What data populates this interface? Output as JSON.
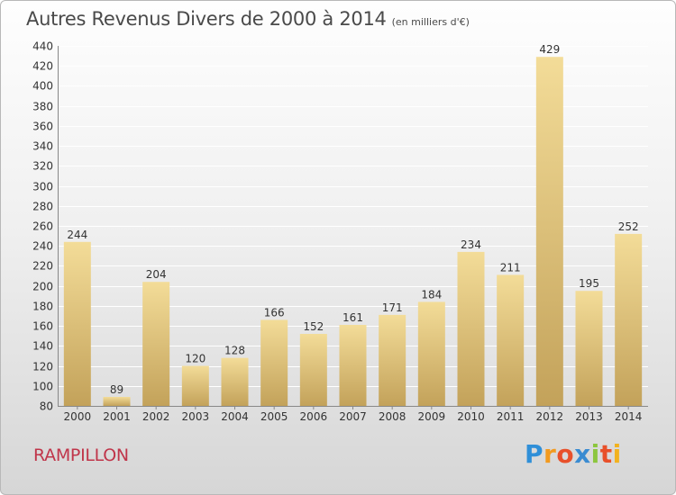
{
  "header": {
    "title": "Autres Revenus Divers de 2000 à 2014",
    "subtitle": "(en milliers d'€)"
  },
  "footer": {
    "commune": "RAMPILLON",
    "logo_text": "Proxiti"
  },
  "colors": {
    "bar_light": "#f3dc98",
    "bar_dark": "#c3a25a",
    "grid": "#ffffff",
    "axis_text": "#333333",
    "commune": "#c0354a"
  },
  "chart_data": {
    "type": "bar",
    "categories": [
      "2000",
      "2001",
      "2002",
      "2003",
      "2004",
      "2005",
      "2006",
      "2007",
      "2008",
      "2009",
      "2010",
      "2011",
      "2012",
      "2013",
      "2014"
    ],
    "values": [
      244,
      89,
      204,
      120,
      128,
      166,
      152,
      161,
      171,
      184,
      234,
      211,
      429,
      195,
      252
    ],
    "data_labels": [
      "244",
      "89",
      "204",
      "120",
      "128",
      "166",
      "152",
      "161",
      "171",
      "184",
      "234",
      "211",
      "429",
      "195",
      "252"
    ],
    "title": "Autres Revenus Divers de 2000 à 2014",
    "subtitle": "(en milliers d'€)",
    "xlabel": "",
    "ylabel": "",
    "ylim": [
      80,
      440
    ],
    "yticks": [
      80,
      100,
      120,
      140,
      160,
      180,
      200,
      220,
      240,
      260,
      280,
      300,
      320,
      340,
      360,
      380,
      400,
      420,
      440
    ],
    "grid": true
  }
}
